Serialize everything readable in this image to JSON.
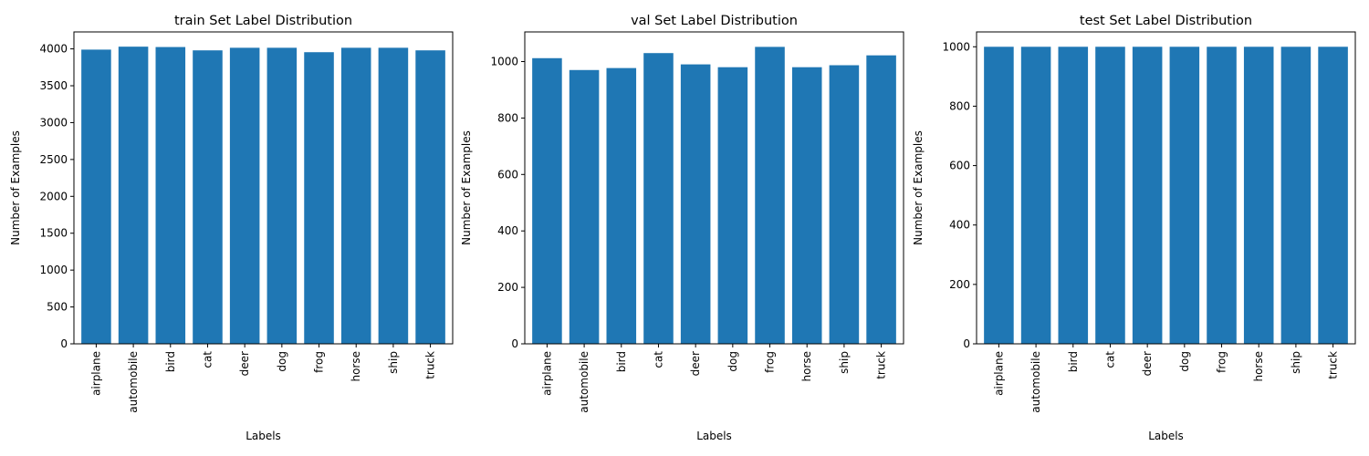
{
  "chart_data": [
    {
      "type": "bar",
      "title": "train Set Label Distribution",
      "xlabel": "Labels",
      "ylabel": "Number of Examples",
      "categories": [
        "airplane",
        "automobile",
        "bird",
        "cat",
        "deer",
        "dog",
        "frog",
        "horse",
        "ship",
        "truck"
      ],
      "values": [
        3990,
        4030,
        4025,
        3980,
        4015,
        4015,
        3955,
        4015,
        4015,
        3980
      ],
      "ylim": [
        0,
        4230
      ],
      "yticks": [
        0,
        500,
        1000,
        1500,
        2000,
        2500,
        3000,
        3500,
        4000
      ],
      "color": "#1f77b4",
      "grid": false
    },
    {
      "type": "bar",
      "title": "val Set Label Distribution",
      "xlabel": "Labels",
      "ylabel": "Number of Examples",
      "categories": [
        "airplane",
        "automobile",
        "bird",
        "cat",
        "deer",
        "dog",
        "frog",
        "horse",
        "ship",
        "truck"
      ],
      "values": [
        1012,
        970,
        977,
        1030,
        990,
        980,
        1052,
        980,
        987,
        1022
      ],
      "ylim": [
        0,
        1105
      ],
      "yticks": [
        0,
        200,
        400,
        600,
        800,
        1000
      ],
      "color": "#1f77b4",
      "grid": false
    },
    {
      "type": "bar",
      "title": "test Set Label Distribution",
      "xlabel": "Labels",
      "ylabel": "Number of Examples",
      "categories": [
        "airplane",
        "automobile",
        "bird",
        "cat",
        "deer",
        "dog",
        "frog",
        "horse",
        "ship",
        "truck"
      ],
      "values": [
        1000,
        1000,
        1000,
        1000,
        1000,
        1000,
        1000,
        1000,
        1000,
        1000
      ],
      "ylim": [
        0,
        1050
      ],
      "yticks": [
        0,
        200,
        400,
        600,
        800,
        1000
      ],
      "color": "#1f77b4",
      "grid": false
    }
  ]
}
